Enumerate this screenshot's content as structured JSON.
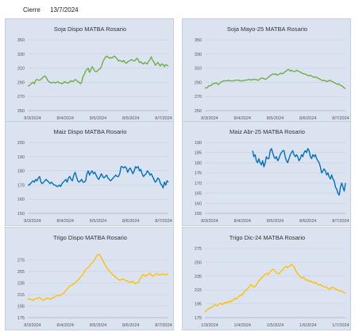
{
  "header": {
    "label": "Cierre",
    "date": "13/7/2024"
  },
  "chart_data": [
    {
      "type": "line",
      "title": "Soja Dispo MATBA Rosario",
      "color": "#70ad47",
      "ylim": [
        250,
        350
      ],
      "yticks": [
        250,
        270,
        290,
        310,
        330,
        350
      ],
      "xticks": [
        "8/3/2024",
        "8/4/2024",
        "8/5/2024",
        "8/6/2024",
        "8/7/2024"
      ],
      "grid": true,
      "values": [
        285,
        285,
        287,
        289,
        290,
        288,
        293,
        294,
        293,
        293,
        294,
        296,
        298,
        299,
        297,
        293,
        291,
        290,
        289,
        290,
        290,
        289,
        290,
        291,
        289,
        289,
        288,
        289,
        291,
        290,
        289,
        289,
        291,
        292,
        291,
        292,
        294,
        293,
        291,
        290,
        288,
        290,
        298,
        301,
        306,
        308,
        310,
        304,
        308,
        312,
        309,
        306,
        305,
        306,
        308,
        309,
        312,
        318,
        322,
        325,
        327,
        326,
        324,
        325,
        324,
        326,
        327,
        325,
        323,
        320,
        321,
        320,
        319,
        321,
        318,
        317,
        319,
        320,
        321,
        322,
        321,
        320,
        321,
        324,
        322,
        318,
        319,
        317,
        316,
        318,
        317,
        316,
        320,
        322,
        326,
        321,
        319,
        314,
        316,
        318,
        315,
        313,
        316,
        315,
        312,
        315,
        314,
        313
      ]
    },
    {
      "type": "line",
      "title": "Soja Mayo-25 MATBA Rosario",
      "color": "#70ad47",
      "ylim": [
        250,
        350
      ],
      "yticks": [
        250,
        270,
        290,
        310,
        330,
        350
      ],
      "xticks": [
        "8/3/2024",
        "8/4/2024",
        "8/5/2024",
        "8/6/2024",
        "8/7/2024"
      ],
      "grid": true,
      "values": [
        282,
        282,
        283,
        285,
        285,
        286,
        288,
        288,
        289,
        289,
        287,
        288,
        290,
        291,
        292,
        292,
        292,
        292,
        293,
        292,
        292,
        292,
        292,
        293,
        293,
        293,
        293,
        292,
        292,
        292,
        293,
        293,
        293,
        294,
        294,
        293,
        294,
        294,
        294,
        294,
        293,
        293,
        295,
        296,
        296,
        295,
        294,
        295,
        297,
        298,
        300,
        301,
        302,
        301,
        302,
        300,
        301,
        302,
        303,
        302,
        303,
        305,
        306,
        308,
        308,
        306,
        307,
        306,
        305,
        306,
        307,
        306,
        305,
        304,
        303,
        302,
        302,
        301,
        300,
        299,
        300,
        299,
        298,
        297,
        298,
        297,
        296,
        295,
        294,
        293,
        292,
        293,
        292,
        291,
        292,
        293,
        292,
        291,
        290,
        289,
        288,
        287,
        288,
        286,
        285,
        284,
        282,
        281
      ]
    },
    {
      "type": "line",
      "title": "Maiz Dispo MATBA Rosario",
      "color": "#0070c0",
      "ylim": [
        150,
        200
      ],
      "yticks": [
        150,
        160,
        170,
        180,
        190,
        200
      ],
      "xticks": [
        "8/3/2024",
        "8/4/2024",
        "8/5/2024",
        "8/6/2024",
        "8/7/2024"
      ],
      "grid": true,
      "values": [
        170,
        170,
        171,
        172,
        173,
        172,
        174,
        173,
        175,
        176,
        172,
        171,
        172,
        173,
        174,
        173,
        172,
        171,
        172,
        171,
        170,
        170,
        169,
        169,
        170,
        169,
        171,
        172,
        173,
        174,
        172,
        175,
        176,
        174,
        173,
        177,
        179,
        176,
        173,
        172,
        173,
        174,
        172,
        172,
        173,
        178,
        180,
        177,
        179,
        180,
        178,
        179,
        177,
        175,
        174,
        176,
        178,
        176,
        175,
        176,
        177,
        175,
        174,
        173,
        174,
        175,
        176,
        177,
        176,
        176,
        178,
        183,
        183,
        182,
        183,
        182,
        179,
        181,
        182,
        180,
        178,
        180,
        183,
        182,
        183,
        180,
        181,
        178,
        176,
        177,
        178,
        180,
        179,
        177,
        178,
        176,
        174,
        172,
        173,
        175,
        174,
        171,
        170,
        168,
        172,
        170,
        173,
        172
      ]
    },
    {
      "type": "line",
      "title": "Maiz Abr-25 MATBA Rosario",
      "color": "#0070c0",
      "ylim": [
        155,
        190
      ],
      "yticks": [
        155,
        160,
        165,
        170,
        175,
        180,
        185,
        190
      ],
      "xticks": [
        "8/3/2024",
        "8/4/2024",
        "8/5/2024",
        "8/6/2024",
        "8/7/2024"
      ],
      "grid": true,
      "values": [
        null,
        null,
        null,
        null,
        null,
        null,
        null,
        null,
        null,
        null,
        null,
        null,
        null,
        null,
        null,
        null,
        null,
        null,
        null,
        null,
        null,
        null,
        null,
        null,
        null,
        null,
        null,
        null,
        null,
        null,
        null,
        null,
        null,
        null,
        null,
        null,
        null,
        null,
        186,
        183,
        184,
        181,
        180,
        182,
        180,
        179,
        181,
        178,
        180,
        183,
        182,
        182,
        186,
        187,
        185,
        183,
        182,
        183,
        181,
        182,
        184,
        185,
        186,
        186,
        183,
        181,
        180,
        182,
        184,
        185,
        186,
        184,
        183,
        184,
        183,
        181,
        182,
        184,
        183,
        185,
        186,
        185,
        187,
        186,
        183,
        182,
        184,
        183,
        184,
        182,
        181,
        180,
        178,
        175,
        176,
        177,
        176,
        174,
        175,
        173,
        172,
        174,
        172,
        171,
        168,
        167,
        165,
        164,
        168,
        170,
        168,
        166,
        170
      ]
    },
    {
      "type": "line",
      "title": "Trigo Dispo MATBA Rosario",
      "color": "#ffc000",
      "ylim": [
        175,
        295
      ],
      "yticks": [
        175,
        195,
        215,
        235,
        255,
        275
      ],
      "xticks": [
        "8/3/2024",
        "8/4/2024",
        "8/5/2024",
        "8/6/2024",
        "8/7/2024"
      ],
      "grid": true,
      "values": [
        206,
        208,
        207,
        206,
        205,
        207,
        208,
        208,
        209,
        210,
        208,
        206,
        205,
        207,
        208,
        209,
        208,
        207,
        208,
        209,
        210,
        212,
        213,
        214,
        213,
        214,
        216,
        217,
        219,
        222,
        225,
        228,
        230,
        231,
        232,
        234,
        235,
        238,
        240,
        242,
        245,
        247,
        250,
        254,
        258,
        260,
        262,
        264,
        268,
        270,
        272,
        276,
        280,
        284,
        285,
        283,
        279,
        275,
        270,
        266,
        262,
        259,
        256,
        253,
        251,
        249,
        247,
        245,
        243,
        241,
        240,
        241,
        242,
        241,
        240,
        239,
        238,
        237,
        236,
        238,
        237,
        236,
        234,
        235,
        236,
        240,
        244,
        247,
        250,
        248,
        247,
        249,
        250,
        252,
        249,
        247,
        248,
        250,
        251,
        250,
        249,
        249,
        250,
        251,
        250,
        249,
        250,
        251
      ]
    },
    {
      "type": "line",
      "title": "Trigo Dic-24 MATBA Rosario",
      "color": "#ffc000",
      "ylim": [
        175,
        275
      ],
      "yticks": [
        175,
        195,
        215,
        235,
        255,
        275
      ],
      "xticks": [
        "1/3/2024",
        "1/4/2024",
        "1/5/2024",
        "1/6/2024",
        "1/7/2024"
      ],
      "grid": true,
      "values": [
        183,
        185,
        187,
        188,
        189,
        190,
        191,
        193,
        194,
        192,
        193,
        195,
        196,
        194,
        195,
        197,
        196,
        198,
        197,
        199,
        198,
        200,
        201,
        203,
        202,
        204,
        206,
        208,
        207,
        210,
        212,
        214,
        216,
        218,
        220,
        223,
        221,
        219,
        220,
        222,
        225,
        228,
        230,
        232,
        234,
        236,
        238,
        239,
        237,
        240,
        242,
        244,
        245,
        243,
        241,
        239,
        238,
        240,
        242,
        244,
        246,
        248,
        249,
        247,
        249,
        250,
        252,
        250,
        248,
        243,
        240,
        238,
        235,
        233,
        232,
        234,
        231,
        229,
        230,
        228,
        227,
        228,
        226,
        225,
        226,
        224,
        223,
        222,
        223,
        221,
        220,
        219,
        220,
        218,
        217,
        216,
        218,
        219,
        218,
        217,
        216,
        215,
        214,
        214,
        213,
        212,
        211,
        210
      ]
    }
  ]
}
